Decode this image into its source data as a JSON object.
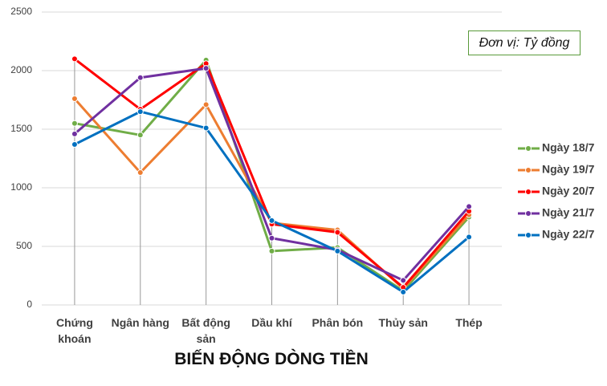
{
  "chart_data": {
    "type": "line",
    "title": "BIẾN ĐỘNG DÒNG TIỀN",
    "annotation": "Đơn vị: Tỷ đồng",
    "categories": [
      "Chứng khoán",
      "Ngân hàng",
      "Bất động sản",
      "Dầu khí",
      "Phân bón",
      "Thủy sản",
      "Thép"
    ],
    "series": [
      {
        "name": "Ngày 18/7",
        "color": "#70ad47",
        "values": [
          1550,
          1450,
          2090,
          460,
          490,
          120,
          750
        ]
      },
      {
        "name": "Ngày 19/7",
        "color": "#ed7d31",
        "values": [
          1760,
          1130,
          1710,
          700,
          640,
          140,
          770
        ]
      },
      {
        "name": "Ngày 20/7",
        "color": "#ff0000",
        "values": [
          2100,
          1670,
          2060,
          690,
          620,
          150,
          800
        ]
      },
      {
        "name": "Ngày 21/7",
        "color": "#7030a0",
        "values": [
          1460,
          1940,
          2020,
          570,
          470,
          210,
          840
        ]
      },
      {
        "name": "Ngày 22/7",
        "color": "#0070c0",
        "values": [
          1370,
          1650,
          1510,
          720,
          460,
          110,
          580
        ]
      }
    ],
    "ylim": [
      0,
      2500
    ],
    "yticks": [
      0,
      500,
      1000,
      1500,
      2000,
      2500
    ],
    "grid": true,
    "drop_lines": true,
    "legend": "right"
  }
}
